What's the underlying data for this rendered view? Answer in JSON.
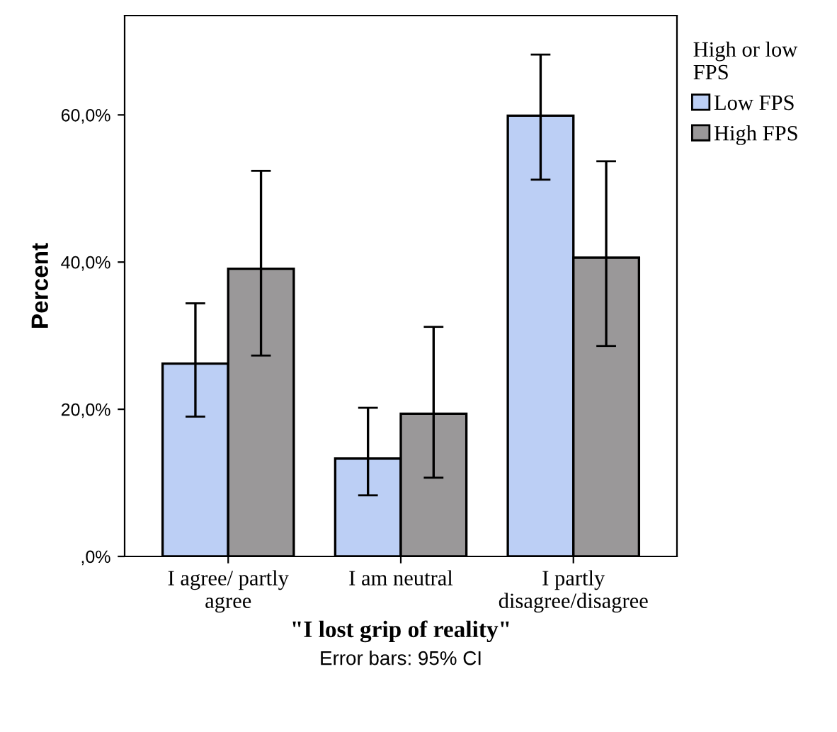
{
  "chart_data": {
    "type": "bar",
    "xlabel": "\"I lost grip of reality\"",
    "ylabel": "Percent",
    "legend_title": "High or low\nFPS",
    "annotations": [
      "Error bars: 95% CI"
    ],
    "categories": [
      "I agree/ partly\nagree",
      "I am neutral",
      "I partly\ndisagree/disagree"
    ],
    "series": [
      {
        "name": "Low FPS",
        "color": "#bccff5",
        "values": [
          26.2,
          13.3,
          59.9
        ],
        "errors": [
          [
            19.0,
            34.4
          ],
          [
            8.3,
            20.2
          ],
          [
            51.2,
            68.2
          ]
        ]
      },
      {
        "name": "High FPS",
        "color": "#9a9899",
        "values": [
          39.1,
          19.4,
          40.6
        ],
        "errors": [
          [
            27.3,
            52.4
          ],
          [
            10.7,
            31.2
          ],
          [
            28.6,
            53.7
          ]
        ]
      }
    ],
    "ylim": [
      0,
      73.5
    ],
    "yticks": [
      {
        "value": 0,
        "label": ",0%"
      },
      {
        "value": 20,
        "label": "20,0%"
      },
      {
        "value": 40,
        "label": "40,0%"
      },
      {
        "value": 60,
        "label": "60,0%"
      }
    ],
    "grid": false,
    "legend": "top right"
  }
}
